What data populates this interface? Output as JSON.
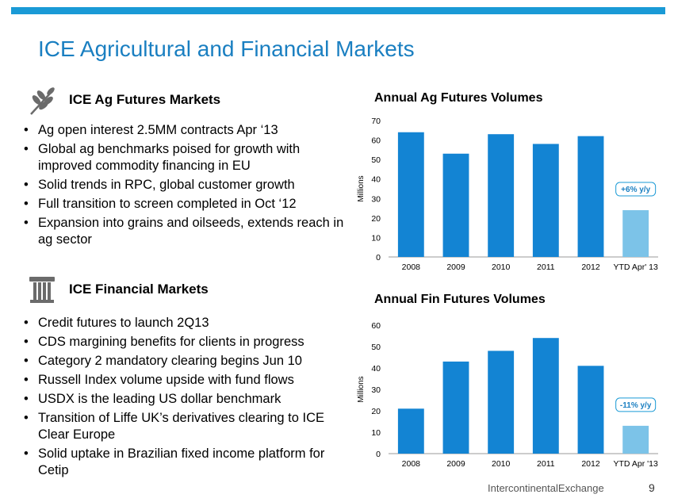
{
  "page": {
    "title": "ICE Agricultural and Financial Markets"
  },
  "ag_section": {
    "heading": "ICE Ag Futures Markets",
    "icon": "wheat-icon",
    "bullets": [
      "Ag open interest 2.5MM contracts Apr ‘13",
      "Global ag benchmarks poised for growth with improved commodity financing in EU",
      "Solid trends in RPC, global customer growth",
      "Full transition to screen completed in Oct ‘12",
      "Expansion into grains and oilseeds, extends reach in ag sector"
    ]
  },
  "fin_section": {
    "heading": "ICE Financial Markets",
    "icon": "column-pillar-icon",
    "bullets": [
      "Credit futures to launch 2Q13",
      "CDS margining benefits for clients in progress",
      "Category 2 mandatory clearing begins Jun 10",
      "Russell Index volume upside with fund flows",
      "USDX is the leading US dollar benchmark",
      "Transition of Liffe UK’s derivatives clearing to ICE Clear Europe",
      "Solid uptake in Brazilian fixed income platform for Cetip"
    ]
  },
  "colors": {
    "accent": "#1a9ad6",
    "title": "#1a7fc1",
    "bar": "#1384d3",
    "ytd_bar": "#7cc3e8"
  },
  "chart_data": [
    {
      "type": "bar",
      "title": "Annual Ag Futures Volumes",
      "ylabel": "Millions",
      "categories": [
        "2008",
        "2009",
        "2010",
        "2011",
        "2012",
        "YTD Apr' 13"
      ],
      "values": [
        64,
        53,
        63,
        58,
        62,
        24
      ],
      "ylim": [
        0,
        70
      ],
      "yticks": [
        "0",
        "10",
        "20",
        "30",
        "40",
        "50",
        "60",
        "70"
      ],
      "annotation": "+6% y/y",
      "grid": false
    },
    {
      "type": "bar",
      "title": "Annual Fin Futures Volumes",
      "ylabel": "Millions",
      "categories": [
        "2008",
        "2009",
        "2010",
        "2011",
        "2012",
        "YTD Apr '13"
      ],
      "values": [
        21,
        43,
        48,
        54,
        41,
        13
      ],
      "ylim": [
        0,
        60
      ],
      "yticks": [
        "0",
        "10",
        "20",
        "30",
        "40",
        "50",
        "60"
      ],
      "annotation": "-11% y/y",
      "grid": false
    }
  ],
  "footer": {
    "brand": "IntercontinentalExchange",
    "page_number": "9"
  }
}
